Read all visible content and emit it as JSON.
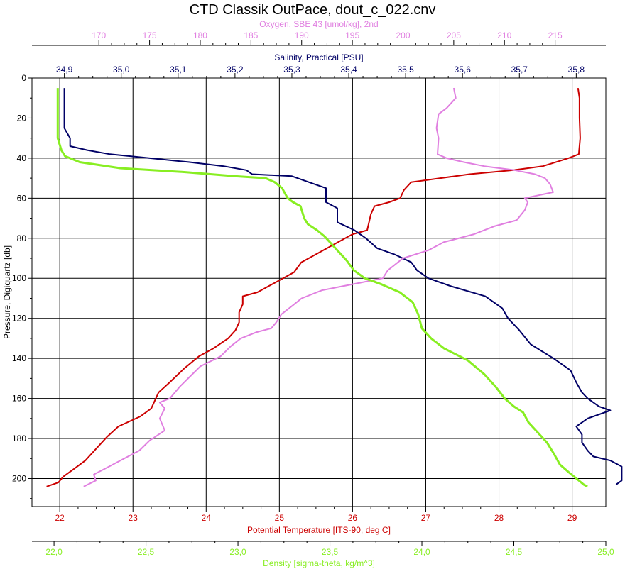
{
  "chart_data": {
    "type": "line",
    "title": "CTD Classik OutPace, dout_c_022.cnv",
    "y_axis": {
      "label": "Pressure, Digiquartz [db]",
      "range": [
        0,
        214
      ],
      "inverted": true,
      "ticks": [
        0,
        20,
        40,
        60,
        80,
        100,
        120,
        140,
        160,
        180,
        200
      ],
      "tick_labels": [
        "0",
        "20",
        "40",
        "60",
        "80",
        "100",
        "120",
        "140",
        "160",
        "180",
        "200"
      ]
    },
    "x_axes": [
      {
        "id": "oxygen",
        "position": "top",
        "label": "Oxygen, SBE 43 [umol/kg], 2nd",
        "color": "#e07fe0",
        "range": [
          163.4,
          220
        ],
        "ticks": [
          170,
          175,
          180,
          185,
          190,
          195,
          200,
          205,
          210,
          215
        ],
        "tick_labels": [
          "170",
          "175",
          "180",
          "185",
          "190",
          "195",
          "200",
          "205",
          "210",
          "215"
        ]
      },
      {
        "id": "salinity",
        "position": "top",
        "label": "Salinity, Practical [PSU]",
        "color": "#000066",
        "range": [
          34.843,
          35.852
        ],
        "ticks": [
          34.9,
          35.0,
          35.1,
          35.2,
          35.3,
          35.4,
          35.5,
          35.6,
          35.7,
          35.8
        ],
        "tick_labels": [
          "34,9",
          "35,0",
          "35,1",
          "35,2",
          "35,3",
          "35,4",
          "35,5",
          "35,6",
          "35,7",
          "35,8"
        ]
      },
      {
        "id": "temperature",
        "position": "bottom",
        "label": "Potential Temperature [ITS-90, deg C]",
        "color": "#cc0000",
        "range": [
          21.62,
          29.46
        ],
        "ticks": [
          22,
          23,
          24,
          25,
          26,
          27,
          28,
          29
        ],
        "tick_labels": [
          "22",
          "23",
          "24",
          "25",
          "26",
          "27",
          "28",
          "29"
        ]
      },
      {
        "id": "density",
        "position": "bottom",
        "label": "Density [sigma-theta, kg/m^3]",
        "color": "#88ee22",
        "range": [
          21.88,
          25.0
        ],
        "ticks": [
          22.0,
          22.5,
          23.0,
          23.5,
          24.0,
          24.5,
          25.0
        ],
        "tick_labels": [
          "22,0",
          "22,5",
          "23,0",
          "23,5",
          "24,0",
          "24,5",
          "25,0"
        ]
      }
    ],
    "grid": true,
    "series": [
      {
        "axis": "temperature",
        "color": "#cc0000",
        "points": [
          [
            29.08,
            5
          ],
          [
            29.1,
            10
          ],
          [
            29.1,
            20
          ],
          [
            29.11,
            30
          ],
          [
            29.09,
            38
          ],
          [
            28.95,
            40
          ],
          [
            28.6,
            44
          ],
          [
            28.2,
            46
          ],
          [
            27.6,
            48
          ],
          [
            27.2,
            50
          ],
          [
            26.8,
            52
          ],
          [
            26.7,
            56
          ],
          [
            26.65,
            60
          ],
          [
            26.5,
            62
          ],
          [
            26.3,
            64
          ],
          [
            26.25,
            68
          ],
          [
            26.2,
            76
          ],
          [
            26.0,
            78
          ],
          [
            25.8,
            82
          ],
          [
            25.6,
            86
          ],
          [
            25.3,
            92
          ],
          [
            25.2,
            97
          ],
          [
            25.0,
            101
          ],
          [
            24.9,
            103
          ],
          [
            24.8,
            105
          ],
          [
            24.7,
            107
          ],
          [
            24.5,
            109
          ],
          [
            24.5,
            113
          ],
          [
            24.45,
            117
          ],
          [
            24.45,
            122
          ],
          [
            24.4,
            126
          ],
          [
            24.3,
            130
          ],
          [
            24.1,
            135
          ],
          [
            23.9,
            139
          ],
          [
            23.7,
            145
          ],
          [
            23.5,
            152
          ],
          [
            23.35,
            157
          ],
          [
            23.3,
            161
          ],
          [
            23.25,
            165
          ],
          [
            23.1,
            169
          ],
          [
            22.8,
            174
          ],
          [
            22.65,
            179
          ],
          [
            22.5,
            185
          ],
          [
            22.35,
            191
          ],
          [
            22.2,
            195
          ],
          [
            22.05,
            199
          ],
          [
            21.98,
            202
          ],
          [
            21.82,
            204
          ]
        ]
      },
      {
        "axis": "salinity",
        "color": "#000066",
        "points": [
          [
            34.9,
            5
          ],
          [
            34.9,
            25
          ],
          [
            34.91,
            30
          ],
          [
            34.91,
            34
          ],
          [
            34.94,
            36
          ],
          [
            34.98,
            38
          ],
          [
            35.05,
            40
          ],
          [
            35.12,
            42
          ],
          [
            35.18,
            44
          ],
          [
            35.22,
            46
          ],
          [
            35.23,
            48
          ],
          [
            35.3,
            49
          ],
          [
            35.33,
            52
          ],
          [
            35.36,
            55
          ],
          [
            35.36,
            62
          ],
          [
            35.38,
            65
          ],
          [
            35.38,
            72
          ],
          [
            35.41,
            76
          ],
          [
            35.43,
            80
          ],
          [
            35.45,
            85
          ],
          [
            35.48,
            88
          ],
          [
            35.51,
            92
          ],
          [
            35.52,
            96
          ],
          [
            35.54,
            100
          ],
          [
            35.58,
            104
          ],
          [
            35.64,
            109
          ],
          [
            35.67,
            115
          ],
          [
            35.68,
            120
          ],
          [
            35.7,
            126
          ],
          [
            35.72,
            133
          ],
          [
            35.76,
            140
          ],
          [
            35.79,
            146
          ],
          [
            35.8,
            152
          ],
          [
            35.81,
            157
          ],
          [
            35.82,
            160
          ],
          [
            35.84,
            164
          ],
          [
            35.86,
            166
          ],
          [
            35.82,
            170
          ],
          [
            35.8,
            174
          ],
          [
            35.81,
            178
          ],
          [
            35.81,
            182
          ],
          [
            35.82,
            186
          ],
          [
            35.83,
            189
          ],
          [
            35.86,
            191
          ],
          [
            35.88,
            194
          ],
          [
            35.88,
            199
          ],
          [
            35.88,
            201
          ],
          [
            35.87,
            203
          ]
        ]
      },
      {
        "axis": "oxygen",
        "color": "#e07fe0",
        "points": [
          [
            205.0,
            5
          ],
          [
            205.2,
            10
          ],
          [
            204.3,
            15
          ],
          [
            203.5,
            18
          ],
          [
            203.3,
            25
          ],
          [
            203.5,
            30
          ],
          [
            203.4,
            38
          ],
          [
            204.3,
            40
          ],
          [
            206.0,
            42
          ],
          [
            208.0,
            44
          ],
          [
            211.0,
            46
          ],
          [
            213.0,
            48
          ],
          [
            214.0,
            50
          ],
          [
            214.5,
            53
          ],
          [
            214.8,
            57
          ],
          [
            212.0,
            60
          ],
          [
            212.3,
            62
          ],
          [
            212.0,
            66
          ],
          [
            211.2,
            71
          ],
          [
            209.0,
            74
          ],
          [
            207.0,
            78
          ],
          [
            204.0,
            82
          ],
          [
            202.5,
            86
          ],
          [
            200.0,
            90
          ],
          [
            199.5,
            92
          ],
          [
            198.5,
            96
          ],
          [
            198.0,
            100
          ],
          [
            196.0,
            102
          ],
          [
            194.0,
            104
          ],
          [
            192.0,
            106
          ],
          [
            190.0,
            110
          ],
          [
            189.0,
            114
          ],
          [
            188.0,
            118
          ],
          [
            187.5,
            122
          ],
          [
            187.0,
            125
          ],
          [
            185.5,
            127
          ],
          [
            184.0,
            130
          ],
          [
            183.0,
            134
          ],
          [
            182.0,
            139
          ],
          [
            180.0,
            144
          ],
          [
            179.0,
            149
          ],
          [
            178.0,
            154
          ],
          [
            177.0,
            160
          ],
          [
            176.0,
            162
          ],
          [
            176.5,
            165
          ],
          [
            176.0,
            170
          ],
          [
            176.5,
            176
          ],
          [
            175.0,
            181
          ],
          [
            174.0,
            186
          ],
          [
            172.5,
            190
          ],
          [
            171.0,
            194
          ],
          [
            169.5,
            198
          ],
          [
            169.7,
            201
          ],
          [
            168.5,
            204
          ]
        ]
      },
      {
        "axis": "density",
        "color": "#88ee22",
        "points": [
          [
            22.02,
            5
          ],
          [
            22.02,
            30
          ],
          [
            22.04,
            36
          ],
          [
            22.06,
            39
          ],
          [
            22.14,
            42
          ],
          [
            22.36,
            45
          ],
          [
            22.72,
            47
          ],
          [
            22.98,
            49
          ],
          [
            23.15,
            50
          ],
          [
            23.2,
            52
          ],
          [
            23.24,
            55
          ],
          [
            23.27,
            60
          ],
          [
            23.3,
            62
          ],
          [
            23.34,
            64
          ],
          [
            23.36,
            70
          ],
          [
            23.38,
            73
          ],
          [
            23.43,
            76
          ],
          [
            23.47,
            79
          ],
          [
            23.5,
            82
          ],
          [
            23.54,
            86
          ],
          [
            23.59,
            91
          ],
          [
            23.63,
            96
          ],
          [
            23.69,
            100
          ],
          [
            23.78,
            103
          ],
          [
            23.88,
            107
          ],
          [
            23.95,
            112
          ],
          [
            23.98,
            118
          ],
          [
            24.0,
            125
          ],
          [
            24.05,
            130
          ],
          [
            24.12,
            135
          ],
          [
            24.25,
            141
          ],
          [
            24.34,
            148
          ],
          [
            24.4,
            154
          ],
          [
            24.45,
            160
          ],
          [
            24.5,
            164
          ],
          [
            24.55,
            167
          ],
          [
            24.58,
            172
          ],
          [
            24.63,
            177
          ],
          [
            24.68,
            182
          ],
          [
            24.72,
            188
          ],
          [
            24.75,
            193
          ],
          [
            24.8,
            197
          ],
          [
            24.84,
            200
          ],
          [
            24.88,
            203
          ],
          [
            24.9,
            204
          ]
        ]
      }
    ]
  }
}
